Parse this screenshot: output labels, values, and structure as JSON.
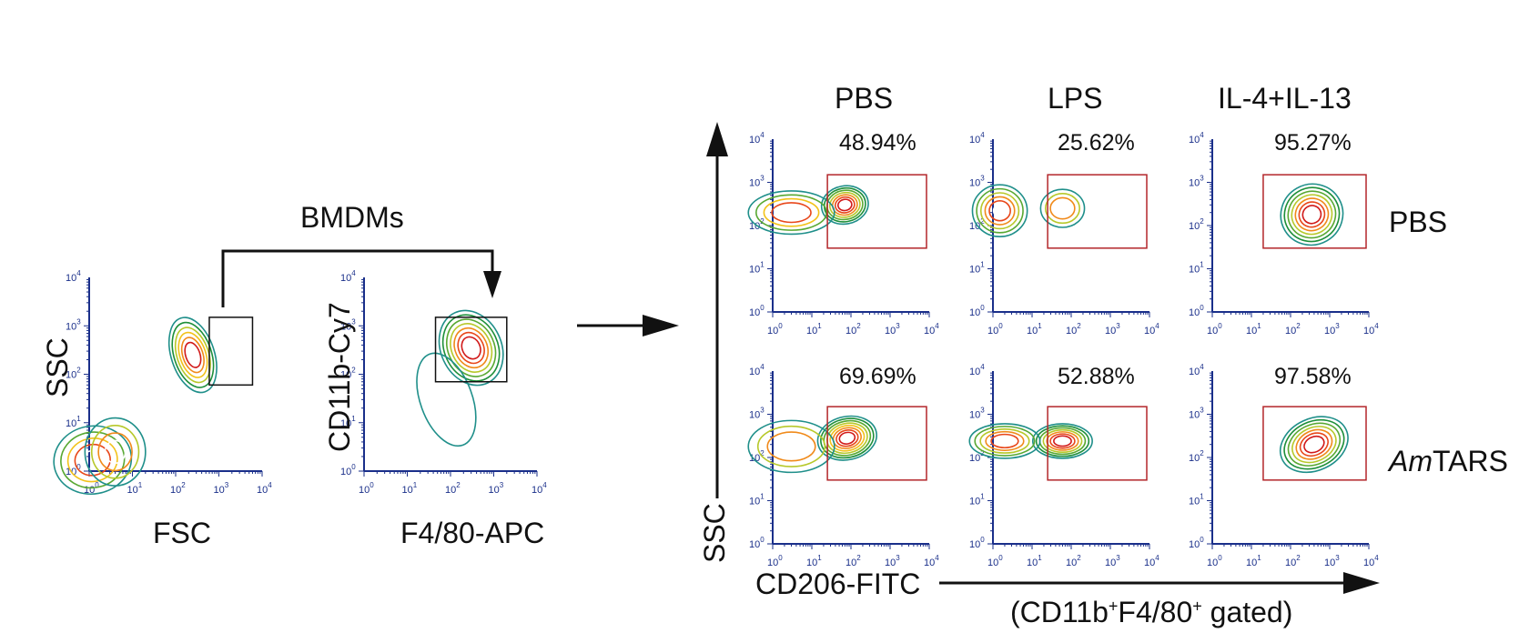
{
  "chart_data": [
    {
      "type": "contour",
      "panel": "gating-1",
      "xlabel": "FSC",
      "ylabel": "SSC",
      "xscale": "log",
      "yscale": "log",
      "xlim": [
        1,
        10000
      ],
      "ylim": [
        1,
        10000
      ],
      "tick_labels": [
        "10^0",
        "10^1",
        "10^2",
        "10^3",
        "10^4"
      ],
      "gate": {
        "x": [
          600,
          6000
        ],
        "y": [
          60,
          1500
        ],
        "color": "#111111"
      },
      "populations": [
        {
          "center": [
            250,
            250
          ],
          "spread": [
            0.25,
            0.4
          ],
          "tilt": 18,
          "levels": 7
        },
        {
          "center": [
            1.2,
            1.7
          ],
          "spread": [
            0.45,
            0.35
          ],
          "tilt": 10,
          "levels": 5
        },
        {
          "center": [
            4,
            2.5
          ],
          "spread": [
            0.35,
            0.35
          ],
          "tilt": 0,
          "levels": 4
        }
      ]
    },
    {
      "type": "contour",
      "panel": "gating-2",
      "xlabel": "F4/80-APC",
      "ylabel": "CD11b-Cy7",
      "xscale": "log",
      "yscale": "log",
      "xlim": [
        1,
        10000
      ],
      "ylim": [
        1,
        10000
      ],
      "tick_labels": [
        "10^0",
        "10^1",
        "10^2",
        "10^3",
        "10^4"
      ],
      "gate": {
        "x": [
          45,
          2000
        ],
        "y": [
          70,
          1500
        ],
        "color": "#111111"
      },
      "populations": [
        {
          "center": [
            300,
            350
          ],
          "spread": [
            0.35,
            0.4
          ],
          "tilt": 25,
          "levels": 8
        },
        {
          "center": [
            80,
            30
          ],
          "spread": [
            0.3,
            0.5
          ],
          "tilt": 20,
          "levels": 1
        }
      ]
    }
  ],
  "flow_header": {
    "columns": [
      "PBS",
      "LPS",
      "IL-4+IL-13"
    ],
    "rows": [
      "PBS",
      "TARS"
    ],
    "row2_italic": "Am",
    "gating_arrow_label": "BMDMs",
    "x_axis_label": "CD206-FITC",
    "y_axis_label": "SSC",
    "gated_prefix": "(CD11b",
    "gated_mid": "F4/80",
    "gated_suffix": " gated)",
    "gated_sup": "+"
  },
  "flow_panels": [
    {
      "column": "PBS",
      "row": "PBS",
      "percent": "48.94%",
      "xlim": [
        1,
        10000
      ],
      "ylim": [
        1,
        10000
      ],
      "gate": {
        "x": [
          25,
          10000
        ],
        "y": [
          30,
          1500
        ],
        "color": "#b3262a"
      },
      "populations": [
        {
          "center": [
            70,
            300
          ],
          "spread": [
            0.3,
            0.22
          ],
          "tilt": 10,
          "levels": 8
        },
        {
          "center": [
            3,
            200
          ],
          "spread": [
            0.55,
            0.25
          ],
          "tilt": 0,
          "levels": 5
        }
      ]
    },
    {
      "column": "LPS",
      "row": "PBS",
      "percent": "25.62%",
      "xlim": [
        1,
        10000
      ],
      "ylim": [
        1,
        10000
      ],
      "gate": {
        "x": [
          25,
          10000
        ],
        "y": [
          30,
          1500
        ],
        "color": "#b3262a"
      },
      "populations": [
        {
          "center": [
            1.5,
            220
          ],
          "spread": [
            0.35,
            0.3
          ],
          "tilt": 0,
          "levels": 6
        },
        {
          "center": [
            60,
            250
          ],
          "spread": [
            0.28,
            0.22
          ],
          "tilt": 0,
          "levels": 4
        }
      ]
    },
    {
      "column": "IL-4+IL-13",
      "row": "PBS",
      "percent": "95.27%",
      "xlim": [
        1,
        10000
      ],
      "ylim": [
        1,
        10000
      ],
      "gate": {
        "x": [
          20,
          10000
        ],
        "y": [
          30,
          1500
        ],
        "color": "#b3262a"
      },
      "populations": [
        {
          "center": [
            350,
            180
          ],
          "spread": [
            0.4,
            0.35
          ],
          "tilt": 30,
          "levels": 8
        }
      ]
    },
    {
      "column": "PBS",
      "row": "TARS",
      "percent": "69.69%",
      "xlim": [
        1,
        10000
      ],
      "ylim": [
        1,
        10000
      ],
      "gate": {
        "x": [
          25,
          10000
        ],
        "y": [
          30,
          1500
        ],
        "color": "#b3262a"
      },
      "populations": [
        {
          "center": [
            80,
            280
          ],
          "spread": [
            0.38,
            0.25
          ],
          "tilt": 12,
          "levels": 9
        },
        {
          "center": [
            3,
            180
          ],
          "spread": [
            0.55,
            0.3
          ],
          "tilt": 0,
          "levels": 4
        }
      ]
    },
    {
      "column": "LPS",
      "row": "TARS",
      "percent": "52.88%",
      "xlim": [
        1,
        10000
      ],
      "ylim": [
        1,
        10000
      ],
      "gate": {
        "x": [
          25,
          10000
        ],
        "y": [
          30,
          1500
        ],
        "color": "#b3262a"
      },
      "populations": [
        {
          "center": [
            60,
            240
          ],
          "spread": [
            0.38,
            0.2
          ],
          "tilt": 0,
          "levels": 8
        },
        {
          "center": [
            2,
            240
          ],
          "spread": [
            0.45,
            0.2
          ],
          "tilt": 0,
          "levels": 6
        }
      ]
    },
    {
      "column": "IL-4+IL-13",
      "row": "TARS",
      "percent": "97.58%",
      "xlim": [
        1,
        10000
      ],
      "ylim": [
        1,
        10000
      ],
      "gate": {
        "x": [
          20,
          10000
        ],
        "y": [
          30,
          1500
        ],
        "color": "#b3262a"
      },
      "populations": [
        {
          "center": [
            400,
            200
          ],
          "spread": [
            0.45,
            0.3
          ],
          "tilt": 25,
          "levels": 8
        }
      ]
    }
  ],
  "contour_colors": [
    "#1f8f8a",
    "#1e8f3a",
    "#58a832",
    "#b7c82a",
    "#f2c21a",
    "#f08a1a",
    "#e8471a",
    "#d11a1a",
    "#ffffff"
  ]
}
